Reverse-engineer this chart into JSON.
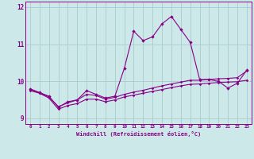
{
  "xlabel": "Windchill (Refroidissement éolien,°C)",
  "background_color": "#cde8e8",
  "line_color": "#880088",
  "grid_color": "#aacccc",
  "x_values": [
    0,
    1,
    2,
    3,
    4,
    5,
    6,
    7,
    8,
    9,
    10,
    11,
    12,
    13,
    14,
    15,
    16,
    17,
    18,
    19,
    20,
    21,
    22,
    23
  ],
  "y_main": [
    9.8,
    9.7,
    9.6,
    9.3,
    9.45,
    9.5,
    9.75,
    9.65,
    9.55,
    9.6,
    10.35,
    11.35,
    11.1,
    11.2,
    11.55,
    11.75,
    11.4,
    11.05,
    10.05,
    10.05,
    10.0,
    9.82,
    9.95,
    10.3
  ],
  "y_low": [
    9.75,
    9.68,
    9.55,
    9.25,
    9.35,
    9.4,
    9.52,
    9.52,
    9.45,
    9.5,
    9.58,
    9.63,
    9.68,
    9.73,
    9.78,
    9.83,
    9.88,
    9.92,
    9.93,
    9.95,
    9.97,
    9.98,
    9.99,
    10.03
  ],
  "y_high": [
    9.78,
    9.69,
    9.58,
    9.32,
    9.42,
    9.5,
    9.65,
    9.62,
    9.52,
    9.57,
    9.65,
    9.71,
    9.76,
    9.82,
    9.88,
    9.93,
    9.98,
    10.03,
    10.03,
    10.05,
    10.07,
    10.08,
    10.1,
    10.28
  ],
  "ylim": [
    8.85,
    12.15
  ],
  "yticks": [
    9,
    10,
    11,
    12
  ],
  "xlim": [
    -0.5,
    23.5
  ]
}
